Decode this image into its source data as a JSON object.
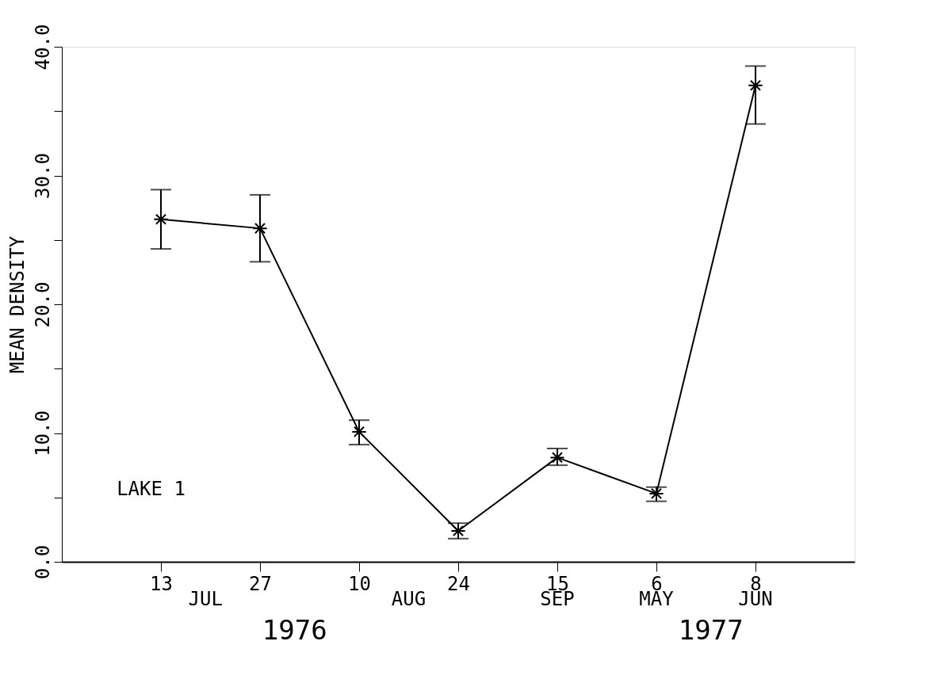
{
  "chart_data": {
    "type": "line",
    "ylabel": "MEAN DENSITY",
    "categories": [
      "13",
      "27",
      "10",
      "24",
      "15",
      "6",
      "8"
    ],
    "series": [
      {
        "color": "#000000",
        "values": [
          26.6,
          25.9,
          10.1,
          2.4,
          8.1,
          5.3,
          37.0
        ],
        "errors": [
          [
            24.3,
            28.9
          ],
          [
            23.3,
            28.5
          ],
          [
            9.1,
            11.0
          ],
          [
            1.8,
            3.0
          ],
          [
            7.5,
            8.8
          ],
          [
            4.7,
            5.8
          ],
          [
            34.0,
            38.5
          ]
        ]
      }
    ],
    "ylim": [
      0,
      40
    ],
    "yticks": [
      {
        "value": 0,
        "label": "0.0"
      },
      {
        "value": 5,
        "label": null
      },
      {
        "value": 10,
        "label": "10.0"
      },
      {
        "value": 15,
        "label": null
      },
      {
        "value": 20,
        "label": "20.0"
      },
      {
        "value": 25,
        "label": null
      },
      {
        "value": 30,
        "label": "30.0"
      },
      {
        "value": 35,
        "label": null
      },
      {
        "value": 40,
        "label": "40.0"
      }
    ],
    "annotations": [
      "JUL",
      "AUG",
      "SEP",
      "MAY",
      "JUN",
      "1976",
      "1977",
      "LAKE 1"
    ],
    "marker": "cross",
    "line_style": "solid",
    "grid": false
  }
}
